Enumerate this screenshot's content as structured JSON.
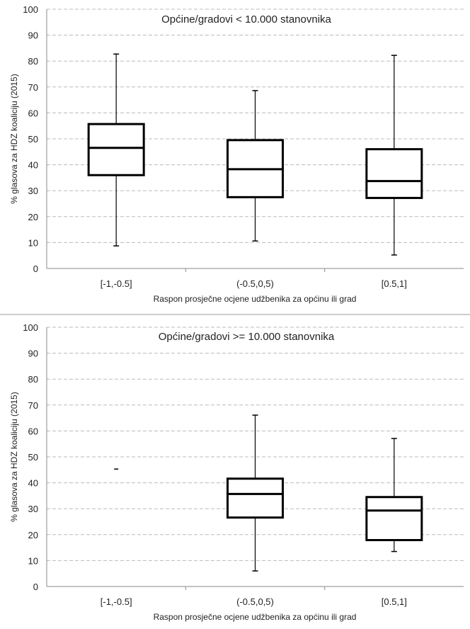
{
  "chart_data": [
    {
      "type": "box",
      "title": "Općine/gradovi < 10.000 stanovnika",
      "xlabel": "Raspon prosječne ocjene udžbenika za općinu ili grad",
      "ylabel": "% glasova za HDZ koaliciju (2015)",
      "ylim": [
        0,
        100
      ],
      "yticks": [
        0,
        10,
        20,
        30,
        40,
        50,
        60,
        70,
        80,
        90,
        100
      ],
      "grid": true,
      "categories": [
        "[-1,-0.5]",
        "(-0.5,0,5)",
        "[0.5,1]"
      ],
      "boxes": [
        {
          "min": 8.7,
          "q1": 36.0,
          "median": 46.5,
          "q3": 55.7,
          "max": 82.7
        },
        {
          "min": 10.6,
          "q1": 27.5,
          "median": 38.3,
          "q3": 49.5,
          "max": 68.6
        },
        {
          "min": 5.2,
          "q1": 27.2,
          "median": 33.7,
          "q3": 46.0,
          "max": 82.2
        }
      ]
    },
    {
      "type": "box",
      "title": "Općine/gradovi >= 10.000 stanovnika",
      "xlabel": "Raspon prosječne ocjene udžbenika za općinu ili grad",
      "ylabel": "% glasova za HDZ koaliciju (2015)",
      "ylim": [
        0,
        100
      ],
      "yticks": [
        0,
        10,
        20,
        30,
        40,
        50,
        60,
        70,
        80,
        90,
        100
      ],
      "grid": true,
      "categories": [
        "[-1,-0.5]",
        "(-0.5,0,5)",
        "[0.5,1]"
      ],
      "boxes": [
        {
          "min": 45.3,
          "q1": 45.3,
          "median": 45.3,
          "q3": 45.3,
          "max": 45.3
        },
        {
          "min": 6.0,
          "q1": 26.6,
          "median": 35.7,
          "q3": 41.6,
          "max": 66.1
        },
        {
          "min": 13.5,
          "q1": 17.9,
          "median": 29.3,
          "q3": 34.5,
          "max": 57.1
        }
      ]
    }
  ]
}
